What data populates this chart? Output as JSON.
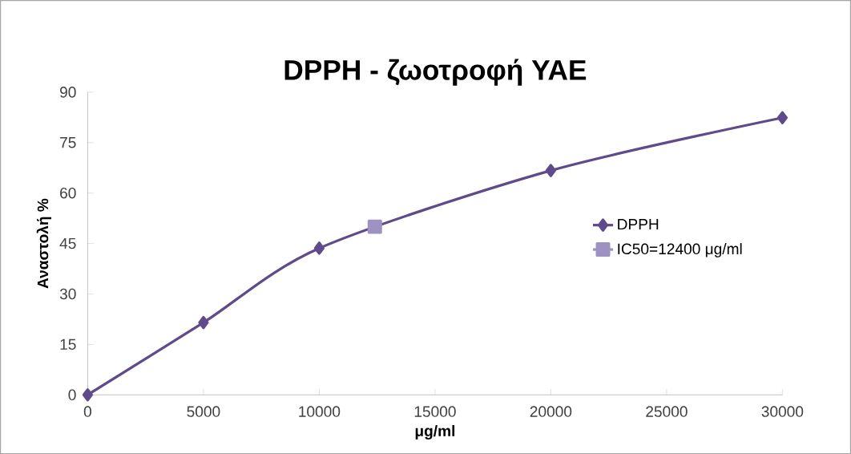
{
  "chart_data": {
    "type": "line",
    "title": "DPPH - ζωοτροφή YAE",
    "xlabel": "μg/ml",
    "ylabel": "Αναστολή %",
    "xlim": [
      0,
      30000
    ],
    "xticks": [
      0,
      5000,
      10000,
      15000,
      20000,
      25000,
      30000
    ],
    "ylim": [
      0,
      90
    ],
    "yticks": [
      0,
      15,
      30,
      45,
      60,
      75,
      90
    ],
    "grid": false,
    "legend": "right",
    "marker": "diamond",
    "line_style": "solid",
    "series": [
      {
        "name": "DPPH",
        "color": "#5f4b8b",
        "x": [
          0,
          5000,
          10000,
          20000,
          30000
        ],
        "values": [
          0,
          21.5,
          43.6,
          66.7,
          82.4
        ]
      },
      {
        "name": "IC50=12400 μg/ml",
        "color": "#9d92c2",
        "marker": "square",
        "x": [
          12400
        ],
        "values": [
          50
        ]
      }
    ]
  }
}
